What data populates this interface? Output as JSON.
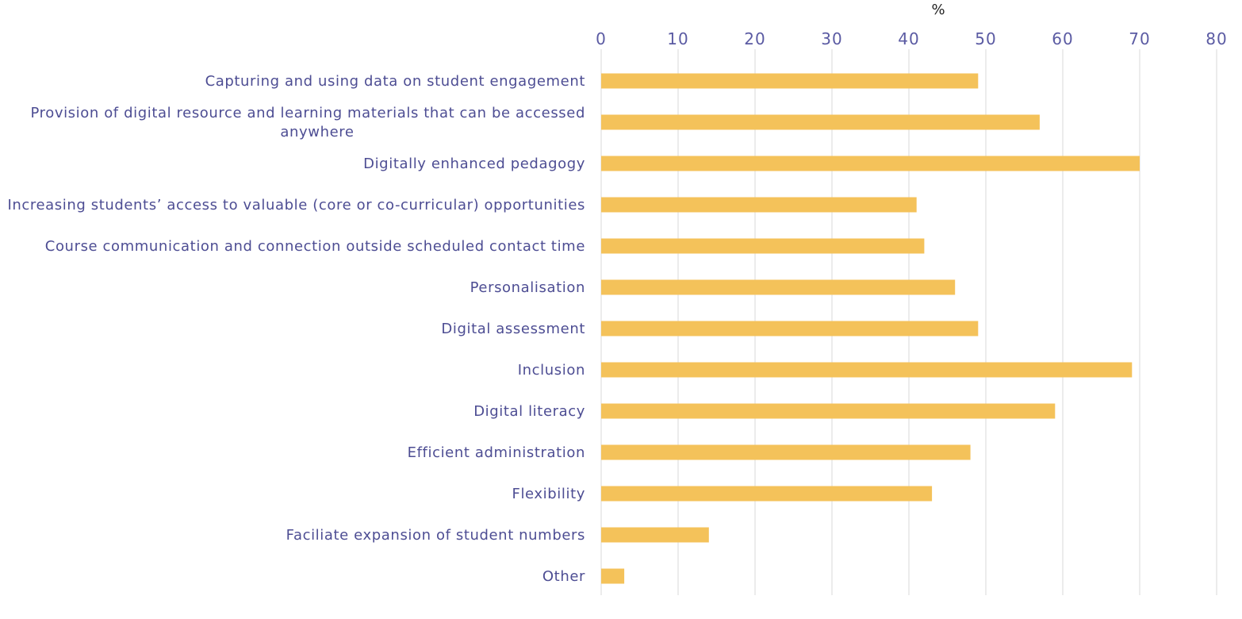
{
  "chart_data": {
    "type": "bar",
    "orientation": "horizontal",
    "title": "",
    "xlabel": "%",
    "ylabel": "",
    "xlim": [
      0,
      80
    ],
    "x_ticks": [
      0,
      10,
      20,
      30,
      40,
      50,
      60,
      70,
      80
    ],
    "grid": true,
    "bar_color": "#f4c25a",
    "text_color": "#4d4d93",
    "categories": [
      [
        "Capturing and using data on student engagement"
      ],
      [
        "Provision of digital resource and learning materials that can be accessed",
        "anywhere"
      ],
      [
        "Digitally enhanced pedagogy"
      ],
      [
        "Increasing students’ access to valuable (core or co-curricular) opportunities"
      ],
      [
        "Course communication and connection outside scheduled contact time"
      ],
      [
        "Personalisation"
      ],
      [
        "Digital assessment"
      ],
      [
        "Inclusion"
      ],
      [
        "Digital literacy"
      ],
      [
        "Efficient administration"
      ],
      [
        "Flexibility"
      ],
      [
        "Faciliate expansion of student numbers"
      ],
      [
        "Other"
      ]
    ],
    "values": [
      49,
      57,
      70,
      41,
      42,
      46,
      49,
      69,
      59,
      48,
      43,
      14,
      3
    ]
  }
}
